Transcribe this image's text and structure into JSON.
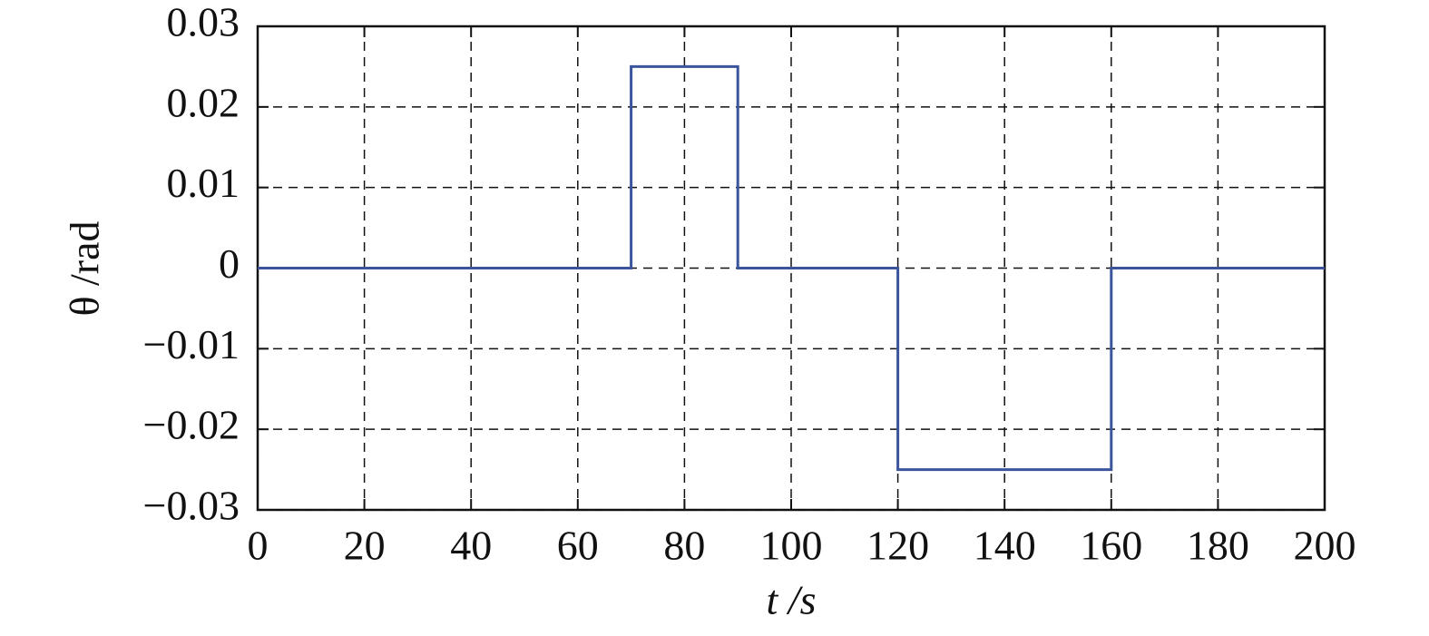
{
  "chart_data": {
    "type": "line",
    "xlabel": "t /s",
    "ylabel": "θ /rad",
    "x": [
      0,
      70,
      70,
      90,
      90,
      120,
      120,
      160,
      160,
      200
    ],
    "series": [
      {
        "color": "#3a559c",
        "values": [
          0,
          0,
          0.025,
          0.025,
          0,
          0,
          -0.025,
          -0.025,
          0,
          0
        ]
      }
    ],
    "xlim": [
      0,
      200
    ],
    "xticks": [
      0,
      20,
      40,
      60,
      80,
      100,
      120,
      140,
      160,
      180,
      200
    ],
    "ylim": [
      -0.03,
      0.03
    ],
    "yticks": [
      {
        "value": -0.03,
        "label": "−0.03"
      },
      {
        "value": -0.02,
        "label": "−0.02"
      },
      {
        "value": -0.01,
        "label": "−0.01"
      },
      0,
      0.01,
      0.02,
      0.03
    ],
    "grid": true
  }
}
